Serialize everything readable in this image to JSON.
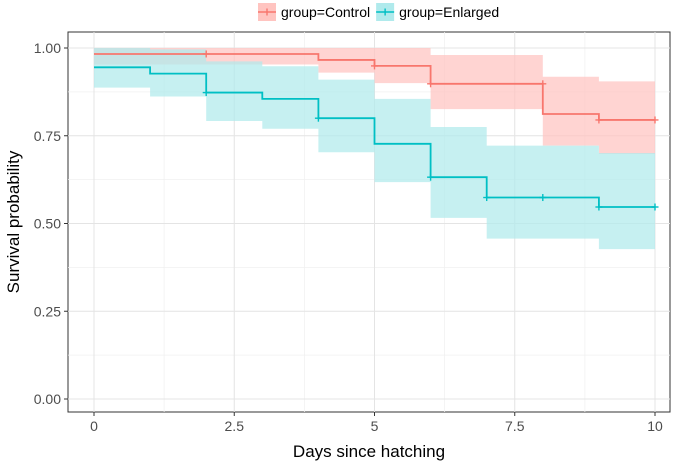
{
  "chart_data": {
    "type": "line",
    "subtype": "kaplan-meier-step",
    "xlabel": "Days since hatching",
    "ylabel": "Survival probability",
    "xlim": [
      0,
      10
    ],
    "ylim": [
      0,
      1
    ],
    "x_ticks": [
      0,
      2.5,
      5,
      7.5,
      10
    ],
    "x_tick_labels": [
      "0",
      "2.5",
      "5",
      "7.5",
      "10"
    ],
    "y_ticks": [
      0,
      0.25,
      0.5,
      0.75,
      1.0
    ],
    "y_tick_labels": [
      "0.00",
      "0.25",
      "0.50",
      "0.75",
      "1.00"
    ],
    "grid": true,
    "legend_position": "top",
    "series": [
      {
        "name": "group=Control",
        "color": "#F8766D",
        "fill_color": "#FFC4C0",
        "steps": [
          {
            "x0": 0,
            "x1": 4,
            "y": 0.983,
            "lower": 0.953,
            "upper": 1.0
          },
          {
            "x0": 4,
            "x1": 5,
            "y": 0.966,
            "lower": 0.93,
            "upper": 1.0
          },
          {
            "x0": 5,
            "x1": 6,
            "y": 0.949,
            "lower": 0.9,
            "upper": 1.0
          },
          {
            "x0": 6,
            "x1": 8,
            "y": 0.898,
            "lower": 0.826,
            "upper": 0.98
          },
          {
            "x0": 8,
            "x1": 9,
            "y": 0.812,
            "lower": 0.722,
            "upper": 0.918
          },
          {
            "x0": 9,
            "x1": 10,
            "y": 0.795,
            "lower": 0.698,
            "upper": 0.905
          }
        ],
        "censors": [
          {
            "x": 2,
            "y": 0.983
          },
          {
            "x": 5,
            "y": 0.949
          },
          {
            "x": 6,
            "y": 0.898
          },
          {
            "x": 8,
            "y": 0.898
          },
          {
            "x": 9,
            "y": 0.795
          },
          {
            "x": 10,
            "y": 0.795
          }
        ]
      },
      {
        "name": "group=Enlarged",
        "color": "#00BFC4",
        "fill_color": "#B0EAEC",
        "steps": [
          {
            "x0": 0,
            "x1": 1,
            "y": 0.945,
            "lower": 0.887,
            "upper": 1.0
          },
          {
            "x0": 1,
            "x1": 2,
            "y": 0.927,
            "lower": 0.862,
            "upper": 0.996
          },
          {
            "x0": 2,
            "x1": 3,
            "y": 0.873,
            "lower": 0.792,
            "upper": 0.962
          },
          {
            "x0": 3,
            "x1": 4,
            "y": 0.855,
            "lower": 0.77,
            "upper": 0.948
          },
          {
            "x0": 4,
            "x1": 5,
            "y": 0.8,
            "lower": 0.703,
            "upper": 0.91
          },
          {
            "x0": 5,
            "x1": 6,
            "y": 0.727,
            "lower": 0.618,
            "upper": 0.855
          },
          {
            "x0": 6,
            "x1": 7,
            "y": 0.632,
            "lower": 0.516,
            "upper": 0.775
          },
          {
            "x0": 7,
            "x1": 9,
            "y": 0.574,
            "lower": 0.457,
            "upper": 0.722
          },
          {
            "x0": 9,
            "x1": 10,
            "y": 0.547,
            "lower": 0.427,
            "upper": 0.701
          }
        ],
        "censors": [
          {
            "x": 2,
            "y": 0.873
          },
          {
            "x": 4,
            "y": 0.8
          },
          {
            "x": 6,
            "y": 0.632
          },
          {
            "x": 7,
            "y": 0.574
          },
          {
            "x": 8,
            "y": 0.574
          },
          {
            "x": 9,
            "y": 0.547
          },
          {
            "x": 10,
            "y": 0.547
          }
        ]
      }
    ]
  }
}
